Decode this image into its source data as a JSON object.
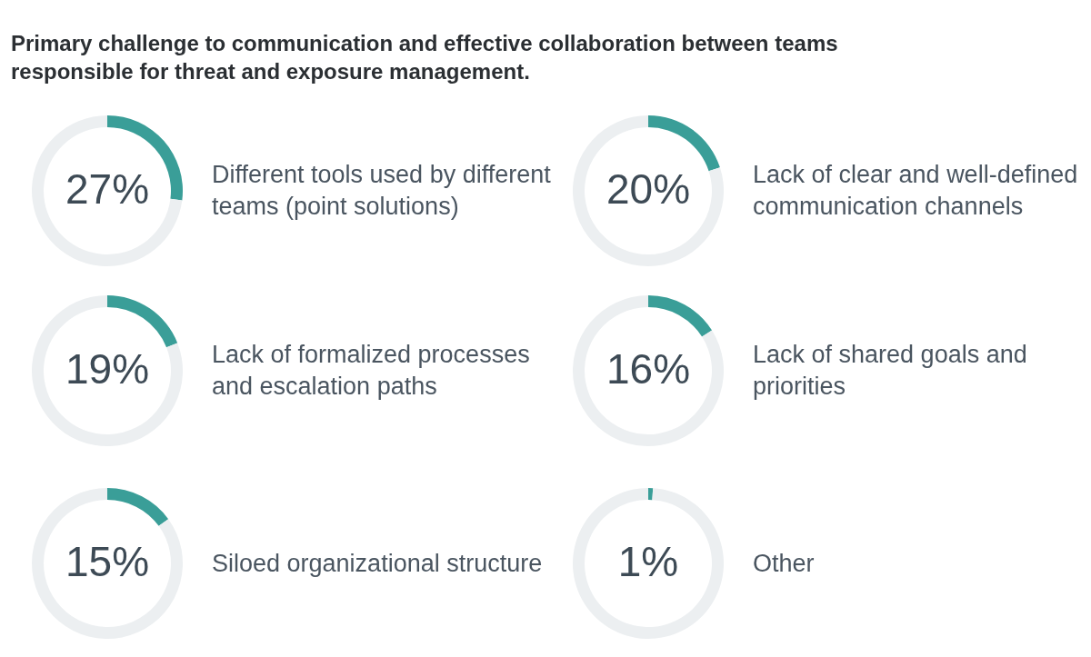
{
  "chart_data": [
    {
      "type": "donut",
      "title": "Primary challenge to communication and effective collaboration between teams responsible for threat and exposure management.",
      "annotations": [
        "Different tools used by different teams (point solutions)"
      ],
      "categories": [
        null,
        null
      ],
      "values": [
        27,
        73
      ],
      "colors": [
        "#3a9e98",
        "#eceff1"
      ],
      "value_labels": [
        "27%",
        null
      ]
    },
    {
      "type": "donut",
      "annotations": [
        "Lack of clear and well-defined communication channels"
      ],
      "categories": [
        null,
        null
      ],
      "values": [
        20,
        80
      ],
      "colors": [
        "#3a9e98",
        "#eceff1"
      ],
      "value_labels": [
        "20%",
        null
      ]
    },
    {
      "type": "donut",
      "annotations": [
        "Lack of formalized processes and escalation paths"
      ],
      "categories": [
        null,
        null
      ],
      "values": [
        19,
        81
      ],
      "colors": [
        "#3a9e98",
        "#eceff1"
      ],
      "value_labels": [
        "19%",
        null
      ]
    },
    {
      "type": "donut",
      "annotations": [
        "Lack of shared goals and priorities"
      ],
      "categories": [
        null,
        null
      ],
      "values": [
        16,
        84
      ],
      "colors": [
        "#3a9e98",
        "#eceff1"
      ],
      "value_labels": [
        "16%",
        null
      ]
    },
    {
      "type": "donut",
      "annotations": [
        "Siloed organizational structure"
      ],
      "categories": [
        null,
        null
      ],
      "values": [
        15,
        85
      ],
      "colors": [
        "#3a9e98",
        "#eceff1"
      ],
      "value_labels": [
        "15%",
        null
      ]
    },
    {
      "type": "donut",
      "annotations": [
        "Other"
      ],
      "categories": [
        null,
        null
      ],
      "values": [
        1,
        99
      ],
      "colors": [
        "#3a9e98",
        "#eceff1"
      ],
      "value_labels": [
        "1%",
        null
      ]
    }
  ]
}
